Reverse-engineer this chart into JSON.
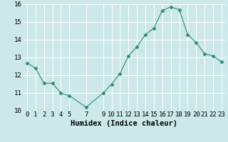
{
  "x": [
    0,
    1,
    2,
    3,
    4,
    5,
    7,
    9,
    10,
    11,
    12,
    13,
    14,
    15,
    16,
    17,
    18,
    19,
    20,
    21,
    22,
    23
  ],
  "y": [
    12.7,
    12.4,
    11.55,
    11.55,
    11.0,
    10.85,
    10.2,
    11.0,
    11.5,
    12.1,
    13.1,
    13.6,
    14.3,
    14.65,
    15.65,
    15.85,
    15.7,
    14.3,
    13.85,
    13.2,
    13.1,
    12.75
  ],
  "line_color": "#2e8b72",
  "marker": "D",
  "marker_size": 2.5,
  "bg_color": "#cce8e8",
  "grid_color": "#ffffff",
  "xlabel": "Humidex (Indice chaleur)",
  "ylim": [
    10,
    16
  ],
  "xlim": [
    -0.5,
    23.5
  ],
  "yticks": [
    10,
    11,
    12,
    13,
    14,
    15,
    16
  ],
  "xticks": [
    0,
    1,
    2,
    3,
    4,
    5,
    7,
    9,
    10,
    11,
    12,
    13,
    14,
    15,
    16,
    17,
    18,
    19,
    20,
    21,
    22,
    23
  ],
  "xlabel_fontsize": 7.5,
  "tick_fontsize": 6.5
}
